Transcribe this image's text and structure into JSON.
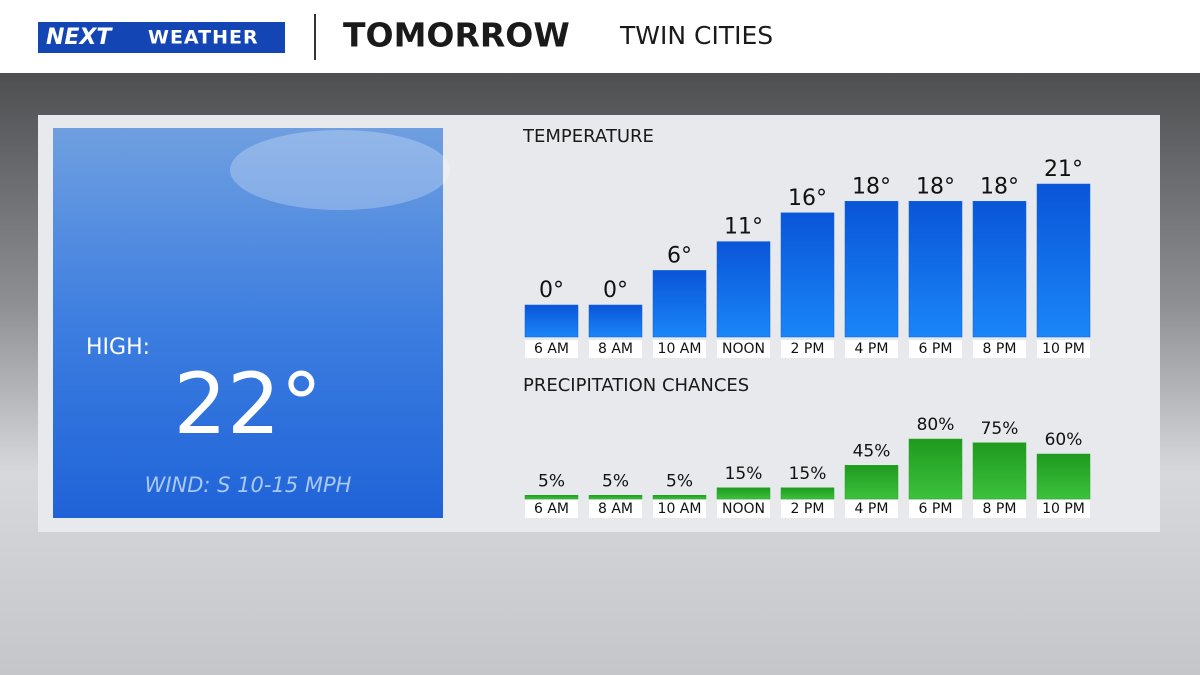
{
  "header": {
    "logo_next": "NEXT",
    "logo_weather": "WEATHER",
    "title": "TOMORROW",
    "location": "TWIN CITIES"
  },
  "high": {
    "label": "HIGH:",
    "value": "22°",
    "wind": "WIND: S 10-15 MPH"
  },
  "chart_data": [
    {
      "type": "bar",
      "title": "TEMPERATURE",
      "categories": [
        "6 AM",
        "8 AM",
        "10 AM",
        "NOON",
        "2 PM",
        "4 PM",
        "6 PM",
        "8 PM",
        "10 PM"
      ],
      "values": [
        0,
        0,
        6,
        11,
        16,
        18,
        18,
        18,
        21
      ],
      "value_labels": [
        "0°",
        "0°",
        "6°",
        "11°",
        "16°",
        "18°",
        "18°",
        "18°",
        "21°"
      ],
      "color": "#0a62e6"
    },
    {
      "type": "bar",
      "title": "PRECIPITATION CHANCES",
      "categories": [
        "6 AM",
        "8 AM",
        "10 AM",
        "NOON",
        "2 PM",
        "4 PM",
        "6 PM",
        "8 PM",
        "10 PM"
      ],
      "values": [
        5,
        5,
        5,
        15,
        15,
        45,
        80,
        75,
        60
      ],
      "value_labels": [
        "5%",
        "5%",
        "5%",
        "15%",
        "15%",
        "45%",
        "80%",
        "75%",
        "60%"
      ],
      "color": "#22a822"
    }
  ]
}
